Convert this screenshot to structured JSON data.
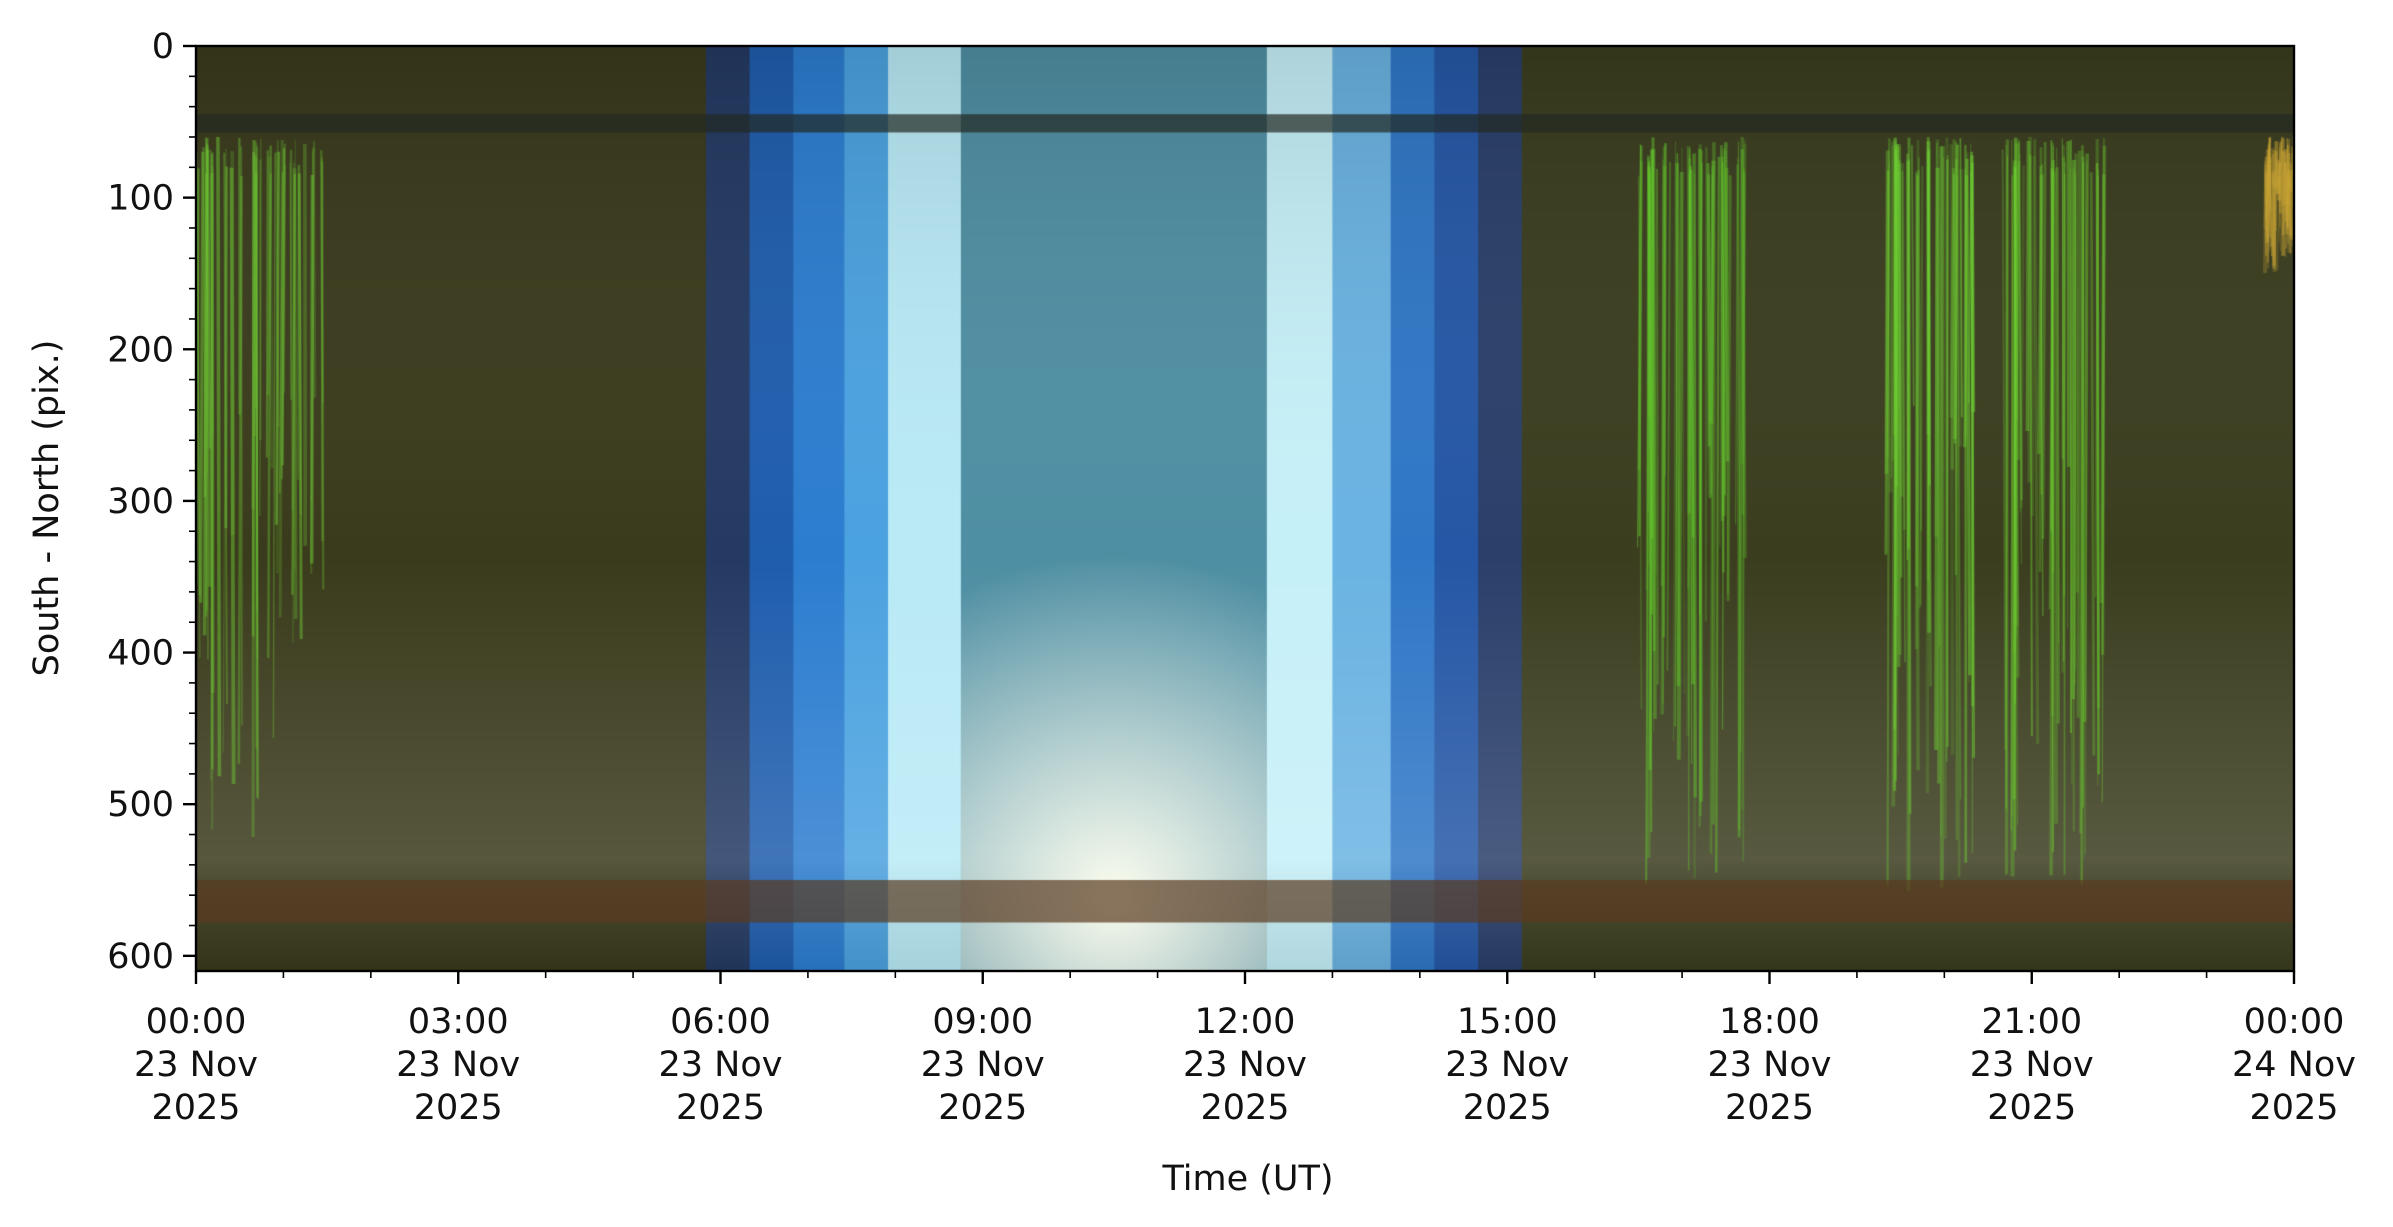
{
  "chart_data": {
    "type": "heatmap",
    "title": "",
    "xlabel": "Time (UT)",
    "ylabel": "South - North (pix.)",
    "xlim": [
      "2025-11-23T00:00",
      "2025-11-24T00:00"
    ],
    "ylim": [
      610,
      0
    ],
    "y_inverted": true,
    "grid": false,
    "yticks": [
      {
        "value": 0,
        "label": "0"
      },
      {
        "value": 100,
        "label": "100"
      },
      {
        "value": 200,
        "label": "200"
      },
      {
        "value": 300,
        "label": "300"
      },
      {
        "value": 400,
        "label": "400"
      },
      {
        "value": 500,
        "label": "500"
      },
      {
        "value": 600,
        "label": "600"
      }
    ],
    "xticks": [
      {
        "value": "2025-11-23T00:00",
        "line1": "00:00",
        "line2": "23 Nov",
        "line3": "2025"
      },
      {
        "value": "2025-11-23T03:00",
        "line1": "03:00",
        "line2": "23 Nov",
        "line3": "2025"
      },
      {
        "value": "2025-11-23T06:00",
        "line1": "06:00",
        "line2": "23 Nov",
        "line3": "2025"
      },
      {
        "value": "2025-11-23T09:00",
        "line1": "09:00",
        "line2": "23 Nov",
        "line3": "2025"
      },
      {
        "value": "2025-11-23T12:00",
        "line1": "12:00",
        "line2": "23 Nov",
        "line3": "2025"
      },
      {
        "value": "2025-11-23T15:00",
        "line1": "15:00",
        "line2": "23 Nov",
        "line3": "2025"
      },
      {
        "value": "2025-11-23T18:00",
        "line1": "18:00",
        "line2": "23 Nov",
        "line3": "2025"
      },
      {
        "value": "2025-11-23T21:00",
        "line1": "21:00",
        "line2": "23 Nov",
        "line3": "2025"
      },
      {
        "value": "2025-11-24T00:00",
        "line1": "00:00",
        "line2": "24 Nov",
        "line3": "2025"
      }
    ],
    "bands": [
      {
        "start": "2025-11-23T00:00",
        "end": "2025-11-23T05:50",
        "color": "#3a3a1c"
      },
      {
        "start": "2025-11-23T05:50",
        "end": "2025-11-23T06:20",
        "color": "#243a63"
      },
      {
        "start": "2025-11-23T06:20",
        "end": "2025-11-23T06:50",
        "color": "#1f5dad"
      },
      {
        "start": "2025-11-23T06:50",
        "end": "2025-11-23T07:25",
        "color": "#2c7dd0"
      },
      {
        "start": "2025-11-23T07:25",
        "end": "2025-11-23T07:55",
        "color": "#4ba2e0"
      },
      {
        "start": "2025-11-23T07:55",
        "end": "2025-11-23T08:45",
        "color": "#b9eaf6"
      },
      {
        "start": "2025-11-23T08:45",
        "end": "2025-11-23T12:15",
        "color": "#4f8fa3"
      },
      {
        "start": "2025-11-23T12:15",
        "end": "2025-11-23T13:00",
        "color": "#c6f0f8"
      },
      {
        "start": "2025-11-23T13:00",
        "end": "2025-11-23T13:40",
        "color": "#6ab3e2"
      },
      {
        "start": "2025-11-23T13:40",
        "end": "2025-11-23T14:10",
        "color": "#2f77c6"
      },
      {
        "start": "2025-11-23T14:10",
        "end": "2025-11-23T14:40",
        "color": "#2557a6"
      },
      {
        "start": "2025-11-23T14:40",
        "end": "2025-11-23T15:10",
        "color": "#2a3f6a"
      },
      {
        "start": "2025-11-23T15:10",
        "end": "2025-11-24T00:00",
        "color": "#3b3d1f"
      }
    ],
    "aurora_activity": [
      {
        "start": "2025-11-23T00:00",
        "end": "2025-11-23T01:30",
        "from": 60,
        "to": 530,
        "color": "#6cc234"
      },
      {
        "start": "2025-11-23T16:30",
        "end": "2025-11-23T17:45",
        "from": 60,
        "to": 560,
        "color": "#64c82e"
      },
      {
        "start": "2025-11-23T19:20",
        "end": "2025-11-23T20:20",
        "from": 60,
        "to": 560,
        "color": "#6fd234"
      },
      {
        "start": "2025-11-23T20:40",
        "end": "2025-11-23T21:50",
        "from": 60,
        "to": 560,
        "color": "#6ccc30"
      },
      {
        "start": "2025-11-23T23:40",
        "end": "2025-11-24T00:00",
        "from": 60,
        "to": 150,
        "color": "#c9a435"
      }
    ],
    "rows": [
      {
        "from": 45,
        "to": 57,
        "color": "#222a22"
      },
      {
        "from": 550,
        "to": 578,
        "color": "#5a3a20"
      }
    ]
  }
}
